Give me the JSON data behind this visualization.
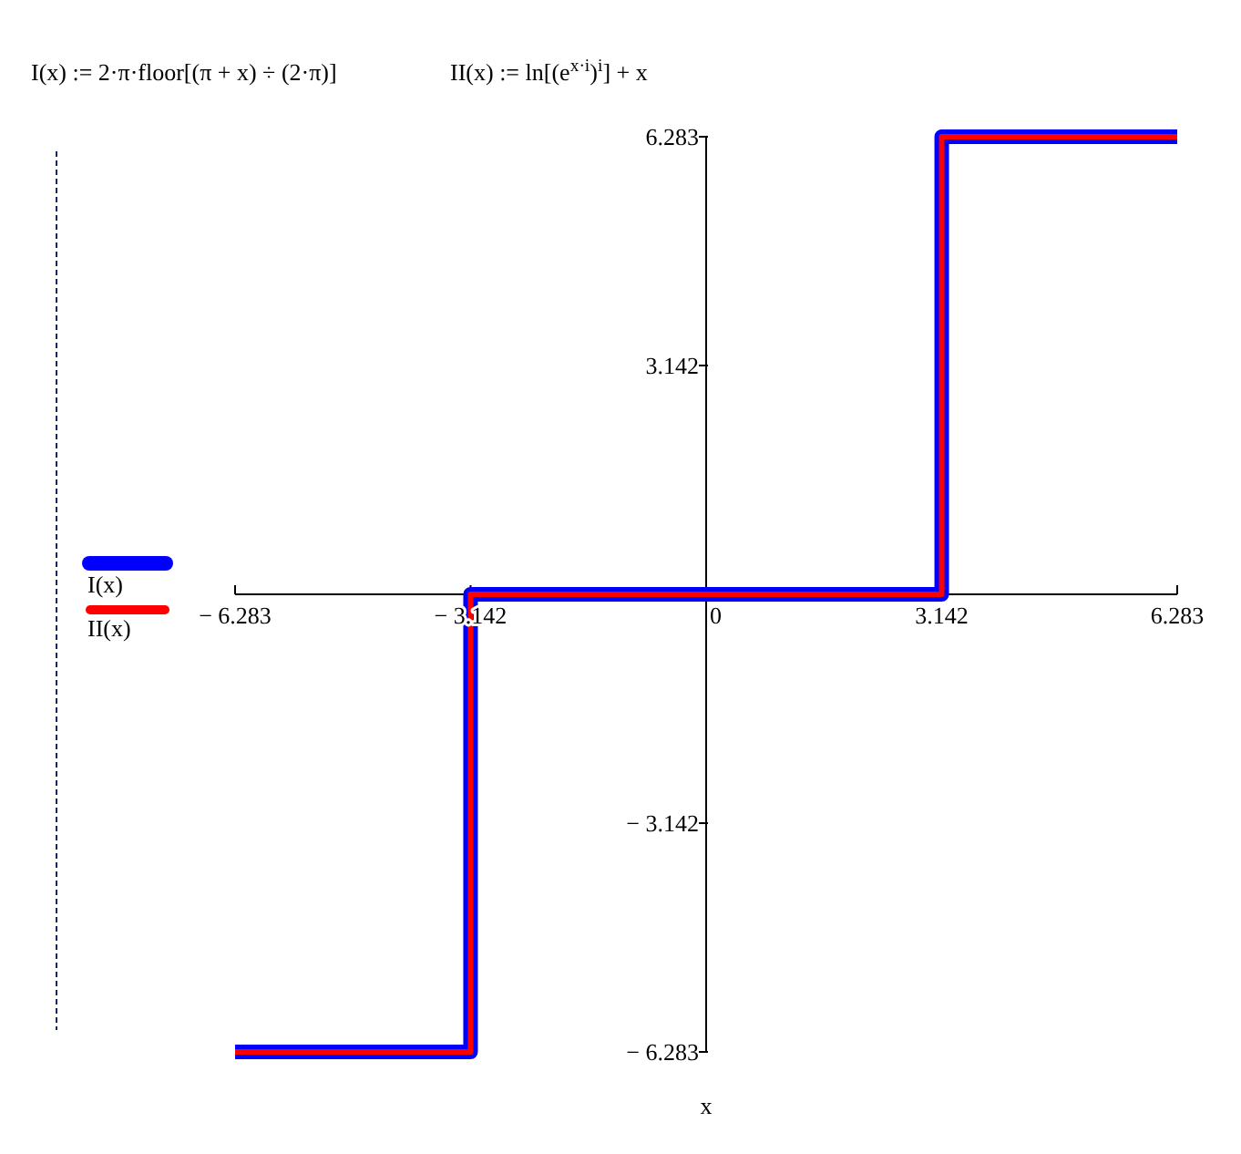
{
  "chart_data": {
    "type": "step",
    "annotations": [
      "I(x) := 2·π·floor[(π + x) ÷ (2·π)]",
      "II(x) := ln[(e$^{x·i}$)$^{i}$] + x"
    ],
    "xlabel": "x",
    "x": [
      -6.283,
      -3.142,
      3.142,
      6.283
    ],
    "series": [
      {
        "name": "I(x)",
        "color": "#0000ff",
        "values": [
          -6.283,
          0,
          6.283,
          6.283
        ]
      },
      {
        "name": "II(x)",
        "color": "#ff0000",
        "values": [
          -6.283,
          0,
          6.283,
          6.283
        ]
      }
    ],
    "xlim": [
      -6.283,
      6.283
    ],
    "ylim": [
      -6.283,
      6.283
    ],
    "xticks": [
      {
        "value": -6.283,
        "label": "− 6.283"
      },
      {
        "value": -3.142,
        "label": "− 3.142"
      },
      0,
      3.142,
      6.283
    ],
    "yticks": [
      {
        "value": -6.283,
        "label": "− 6.283"
      },
      {
        "value": -3.142,
        "label": "− 3.142"
      },
      3.142,
      6.283
    ],
    "grid": false,
    "legend": "left",
    "marker": "none",
    "line_style": "solid"
  }
}
